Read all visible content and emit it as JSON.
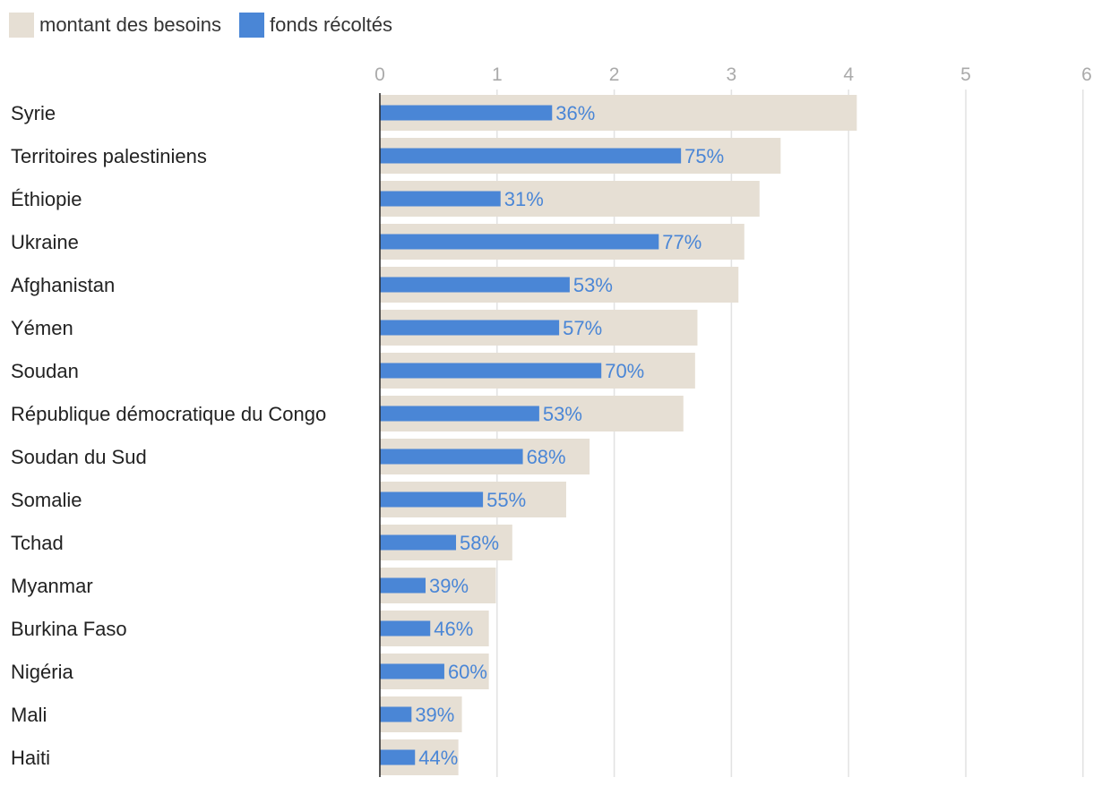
{
  "chart_data": {
    "type": "bar",
    "orientation": "horizontal",
    "title": "",
    "xlabel": "",
    "ylabel": "",
    "xlim": [
      0,
      6
    ],
    "x_ticks": [
      "0",
      "1",
      "2",
      "3",
      "4",
      "5",
      "6"
    ],
    "grid": true,
    "legend_position": "top-left",
    "categories": [
      "Syrie",
      "Territoires palestiniens",
      "Éthiopie",
      "Ukraine",
      "Afghanistan",
      "Yémen",
      "Soudan",
      "République démocratique du Congo",
      "Soudan du Sud",
      "Somalie",
      "Tchad",
      "Myanmar",
      "Burkina Faso",
      "Nigéria",
      "Mali",
      "Haiti"
    ],
    "series": [
      {
        "name": "montant des besoins",
        "color": "#e6dfd4",
        "values": [
          4.07,
          3.42,
          3.24,
          3.11,
          3.06,
          2.71,
          2.69,
          2.59,
          1.79,
          1.59,
          1.13,
          0.99,
          0.93,
          0.93,
          0.7,
          0.67
        ]
      },
      {
        "name": "fonds récoltés",
        "color": "#4a86d6",
        "values": [
          1.47,
          2.57,
          1.03,
          2.38,
          1.62,
          1.53,
          1.89,
          1.36,
          1.22,
          0.88,
          0.65,
          0.39,
          0.43,
          0.55,
          0.27,
          0.3
        ]
      }
    ],
    "data_labels": [
      "36%",
      "75%",
      "31%",
      "77%",
      "53%",
      "57%",
      "70%",
      "53%",
      "68%",
      "55%",
      "58%",
      "39%",
      "46%",
      "60%",
      "39%",
      "44%"
    ]
  }
}
